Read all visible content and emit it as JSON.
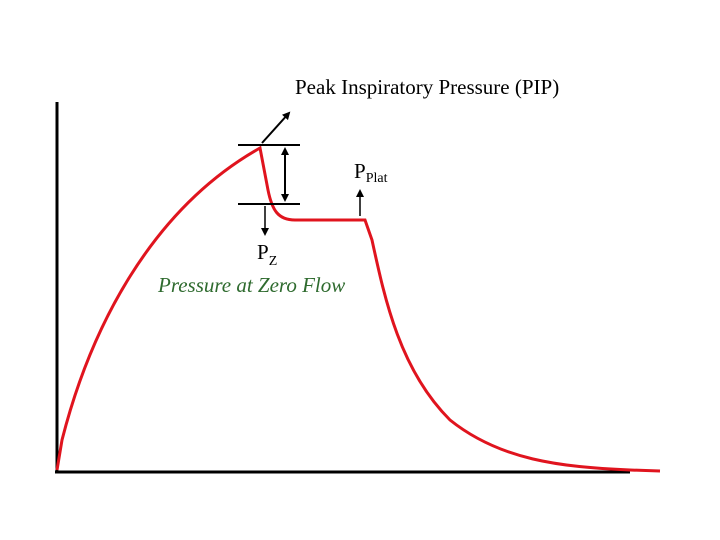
{
  "annotations": {
    "pip": "Peak Inspiratory Pressure (PIP)",
    "pplat": {
      "main": "P",
      "sub": "Plat"
    },
    "pz": {
      "main": "P",
      "sub": "Z"
    },
    "pz_caption": "Pressure at Zero Flow"
  }
}
